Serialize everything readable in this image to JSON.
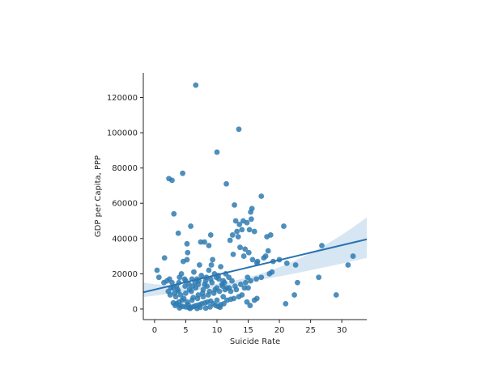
{
  "chart_data": {
    "type": "scatter",
    "title": "",
    "xlabel": "Suicide Rate",
    "ylabel": "GDP per Capita, PPP",
    "xlim": [
      -1.8,
      34.0
    ],
    "ylim": [
      -6000,
      134000
    ],
    "xticks": [
      0,
      5,
      10,
      15,
      20,
      25,
      30
    ],
    "yticks": [
      0,
      20000,
      40000,
      60000,
      80000,
      100000,
      120000
    ],
    "grid": false,
    "legend": "none",
    "colors": {
      "points": "#2f7bb1",
      "line": "#2a72b0",
      "ci_band": "#c6dcee"
    },
    "regression": {
      "x_range": [
        -1.8,
        34.0
      ],
      "intercept": 11000,
      "slope": 840,
      "ci_low_at_start": 6800,
      "ci_high_at_start": 15000,
      "ci_low_at_center": 16000,
      "ci_high_at_center": 19000,
      "ci_low_at_end": 29000,
      "ci_high_at_end": 52000
    },
    "points": [
      [
        6.6,
        127000
      ],
      [
        13.5,
        102000
      ],
      [
        10.0,
        89000
      ],
      [
        4.5,
        77000
      ],
      [
        2.3,
        74000
      ],
      [
        2.8,
        73000
      ],
      [
        11.5,
        71000
      ],
      [
        17.1,
        64000
      ],
      [
        3.1,
        54000
      ],
      [
        12.8,
        59000
      ],
      [
        15.6,
        57000
      ],
      [
        15.4,
        55000
      ],
      [
        13.0,
        50000
      ],
      [
        13.6,
        48000
      ],
      [
        14.2,
        50000
      ],
      [
        14.8,
        49000
      ],
      [
        15.5,
        51000
      ],
      [
        16.0,
        44000
      ],
      [
        15.2,
        45000
      ],
      [
        13.2,
        44000
      ],
      [
        12.5,
        42000
      ],
      [
        13.4,
        41000
      ],
      [
        12.1,
        39000
      ],
      [
        14.0,
        45000
      ],
      [
        18.0,
        41000
      ],
      [
        18.6,
        42000
      ],
      [
        20.7,
        47000
      ],
      [
        26.8,
        36000
      ],
      [
        31.8,
        30000
      ],
      [
        31.0,
        25000
      ],
      [
        5.8,
        47000
      ],
      [
        3.8,
        43000
      ],
      [
        5.2,
        37000
      ],
      [
        9.0,
        42000
      ],
      [
        8.0,
        38000
      ],
      [
        7.4,
        38000
      ],
      [
        8.7,
        36000
      ],
      [
        5.3,
        32000
      ],
      [
        5.2,
        28000
      ],
      [
        4.6,
        27000
      ],
      [
        1.6,
        29000
      ],
      [
        0.4,
        22000
      ],
      [
        0.7,
        18000
      ],
      [
        2.0,
        16000
      ],
      [
        2.4,
        17000
      ],
      [
        2.8,
        15000
      ],
      [
        3.5,
        13000
      ],
      [
        3.0,
        12000
      ],
      [
        3.8,
        10000
      ],
      [
        2.5,
        8000
      ],
      [
        2.2,
        10000
      ],
      [
        3.9,
        15000
      ],
      [
        4.0,
        18000
      ],
      [
        4.3,
        20000
      ],
      [
        4.8,
        17000
      ],
      [
        5.0,
        16000
      ],
      [
        5.5,
        14000
      ],
      [
        6.1,
        13000
      ],
      [
        6.5,
        15000
      ],
      [
        6.8,
        17000
      ],
      [
        7.1,
        16000
      ],
      [
        7.5,
        19000
      ],
      [
        8.0,
        14000
      ],
      [
        8.3,
        18000
      ],
      [
        8.7,
        22000
      ],
      [
        9.1,
        25000
      ],
      [
        9.3,
        28000
      ],
      [
        9.6,
        20000
      ],
      [
        9.9,
        18000
      ],
      [
        10.3,
        17000
      ],
      [
        10.6,
        24000
      ],
      [
        11.0,
        16000
      ],
      [
        11.2,
        15000
      ],
      [
        11.6,
        12000
      ],
      [
        7.2,
        25000
      ],
      [
        6.3,
        21000
      ],
      [
        5.6,
        11000
      ],
      [
        5.0,
        9000
      ],
      [
        4.2,
        8000
      ],
      [
        3.4,
        7000
      ],
      [
        3.0,
        3500
      ],
      [
        3.5,
        3000
      ],
      [
        4.1,
        2000
      ],
      [
        4.5,
        1500
      ],
      [
        5.0,
        1200
      ],
      [
        5.5,
        800
      ],
      [
        5.9,
        1000
      ],
      [
        6.3,
        1500
      ],
      [
        6.7,
        2000
      ],
      [
        7.2,
        2500
      ],
      [
        7.6,
        3000
      ],
      [
        8.1,
        3500
      ],
      [
        8.5,
        4000
      ],
      [
        9.0,
        4500
      ],
      [
        9.4,
        3000
      ],
      [
        9.8,
        2000
      ],
      [
        10.2,
        1500
      ],
      [
        10.6,
        2500
      ],
      [
        11.1,
        3000
      ],
      [
        11.6,
        5000
      ],
      [
        12.2,
        5500
      ],
      [
        12.7,
        6000
      ],
      [
        13.5,
        7000
      ],
      [
        14.0,
        8000
      ],
      [
        14.8,
        4000
      ],
      [
        15.3,
        2000
      ],
      [
        16.0,
        5000
      ],
      [
        16.4,
        6000
      ],
      [
        4.4,
        5000
      ],
      [
        5.2,
        4000
      ],
      [
        6.0,
        5000
      ],
      [
        6.9,
        6000
      ],
      [
        7.8,
        7000
      ],
      [
        8.6,
        8000
      ],
      [
        9.5,
        9000
      ],
      [
        10.4,
        10000
      ],
      [
        11.3,
        11000
      ],
      [
        12.0,
        12000
      ],
      [
        12.9,
        13000
      ],
      [
        13.8,
        14000
      ],
      [
        14.6,
        15000
      ],
      [
        15.4,
        16000
      ],
      [
        16.3,
        17000
      ],
      [
        17.1,
        18000
      ],
      [
        18.4,
        20000
      ],
      [
        18.8,
        21000
      ],
      [
        19.0,
        27000
      ],
      [
        20.0,
        28000
      ],
      [
        21.2,
        26000
      ],
      [
        22.6,
        25000
      ],
      [
        16.5,
        27000
      ],
      [
        15.7,
        28000
      ],
      [
        15.1,
        32000
      ],
      [
        14.5,
        34000
      ],
      [
        13.7,
        35000
      ],
      [
        12.6,
        31000
      ],
      [
        14.3,
        30000
      ],
      [
        16.4,
        26000
      ],
      [
        17.5,
        29000
      ],
      [
        22.9,
        15000
      ],
      [
        26.3,
        18000
      ],
      [
        29.1,
        8000
      ],
      [
        22.4,
        8000
      ],
      [
        21.0,
        3000
      ],
      [
        10.0,
        5000
      ],
      [
        11.0,
        7000
      ],
      [
        10.5,
        1000
      ],
      [
        8.2,
        500
      ],
      [
        6.8,
        300
      ],
      [
        5.7,
        300
      ],
      [
        7.3,
        900
      ],
      [
        8.9,
        1200
      ],
      [
        3.2,
        9000
      ],
      [
        3.7,
        11000
      ],
      [
        1.5,
        15000
      ],
      [
        2.6,
        12000
      ],
      [
        4.9,
        13000
      ],
      [
        6.0,
        17000
      ],
      [
        6.6,
        12000
      ],
      [
        7.8,
        11000
      ],
      [
        8.4,
        13000
      ],
      [
        9.2,
        15000
      ],
      [
        10.0,
        12000
      ],
      [
        10.8,
        14000
      ],
      [
        11.9,
        18000
      ],
      [
        12.2,
        10000
      ],
      [
        13.1,
        11000
      ],
      [
        14.4,
        12000
      ],
      [
        9.0,
        17000
      ],
      [
        10.2,
        19000
      ],
      [
        11.4,
        20000
      ],
      [
        8.2,
        16000
      ],
      [
        7.0,
        14000
      ],
      [
        5.9,
        10000
      ],
      [
        4.7,
        6000
      ],
      [
        3.9,
        4000
      ],
      [
        3.3,
        2000
      ],
      [
        4.0,
        600
      ],
      [
        5.4,
        2500
      ],
      [
        6.2,
        6500
      ],
      [
        7.0,
        8000
      ],
      [
        7.7,
        9000
      ],
      [
        8.8,
        10000
      ],
      [
        9.7,
        11000
      ],
      [
        10.9,
        13000
      ],
      [
        12.4,
        16000
      ],
      [
        15.0,
        12000
      ],
      [
        17.8,
        30000
      ],
      [
        18.2,
        33000
      ],
      [
        14.9,
        18000
      ]
    ]
  }
}
